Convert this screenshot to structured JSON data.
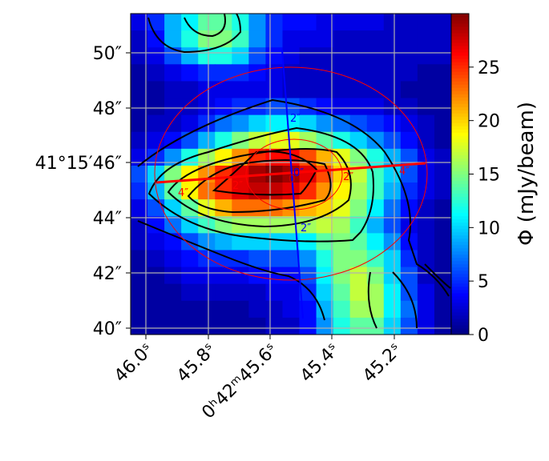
{
  "chart_data": {
    "type": "heatmap",
    "colormap": "jet",
    "colorbar": {
      "label": "Φ (mJy/beam)",
      "range": [
        0,
        30
      ],
      "ticks": [
        "0",
        "5",
        "10",
        "15",
        "20",
        "25"
      ],
      "tick_values": [
        0,
        5,
        10,
        15,
        20,
        25
      ]
    },
    "x_ticks": [
      "46.0ˢ",
      "45.8ˢ",
      "0ʰ42ᵐ45.6ˢ",
      "45.4ˢ",
      "45.2ˢ"
    ],
    "y_ticks": [
      "50″",
      "48″",
      "41°15′46″",
      "44″",
      "42″",
      "40″"
    ],
    "grid": true,
    "values": [
      [
        3,
        5,
        9,
        11,
        14,
        14,
        12,
        8,
        5,
        4,
        4,
        3,
        3,
        3,
        3,
        2,
        2,
        2,
        2
      ],
      [
        2,
        4,
        9,
        12,
        15,
        15,
        13,
        8,
        5,
        3,
        3,
        3,
        2,
        2,
        2,
        2,
        2,
        2,
        2
      ],
      [
        2,
        3,
        6,
        9,
        12,
        12,
        10,
        6,
        4,
        3,
        2,
        2,
        2,
        2,
        2,
        2,
        2,
        2,
        2
      ],
      [
        1,
        2,
        3,
        4,
        5,
        5,
        5,
        4,
        3,
        2,
        2,
        2,
        2,
        2,
        2,
        2,
        2,
        1,
        1
      ],
      [
        1,
        1,
        2,
        2,
        3,
        3,
        3,
        3,
        3,
        2,
        2,
        2,
        2,
        2,
        2,
        2,
        1,
        1,
        1
      ],
      [
        1,
        1,
        2,
        2,
        3,
        4,
        5,
        5,
        6,
        6,
        5,
        4,
        3,
        3,
        3,
        2,
        2,
        1,
        1
      ],
      [
        1,
        2,
        2,
        3,
        5,
        7,
        8,
        10,
        11,
        11,
        10,
        8,
        7,
        6,
        5,
        4,
        3,
        2,
        1
      ],
      [
        2,
        3,
        4,
        6,
        9,
        12,
        15,
        17,
        18,
        18,
        16,
        14,
        12,
        10,
        8,
        6,
        4,
        2,
        1
      ],
      [
        3,
        5,
        8,
        12,
        16,
        19,
        22,
        25,
        26,
        26,
        24,
        21,
        18,
        15,
        12,
        9,
        6,
        3,
        2
      ],
      [
        6,
        10,
        15,
        19,
        22,
        25,
        27,
        29,
        30,
        29,
        27,
        24,
        20,
        17,
        13,
        10,
        6,
        3,
        2
      ],
      [
        5,
        9,
        14,
        19,
        23,
        25,
        27,
        28,
        28,
        27,
        25,
        22,
        19,
        16,
        13,
        9,
        5,
        3,
        2
      ],
      [
        3,
        6,
        10,
        14,
        18,
        21,
        23,
        23,
        23,
        22,
        21,
        20,
        18,
        15,
        11,
        7,
        4,
        2,
        1
      ],
      [
        2,
        4,
        7,
        10,
        13,
        15,
        16,
        16,
        16,
        16,
        16,
        17,
        16,
        13,
        9,
        6,
        3,
        2,
        1
      ],
      [
        2,
        3,
        4,
        6,
        8,
        9,
        10,
        10,
        10,
        10,
        11,
        14,
        15,
        14,
        11,
        8,
        4,
        2,
        1
      ],
      [
        1,
        2,
        3,
        4,
        5,
        5,
        5,
        6,
        6,
        6,
        8,
        12,
        15,
        15,
        13,
        10,
        5,
        2,
        1
      ],
      [
        1,
        1,
        2,
        3,
        3,
        3,
        3,
        4,
        4,
        4,
        6,
        11,
        15,
        17,
        15,
        10,
        6,
        2,
        1
      ],
      [
        1,
        1,
        1,
        2,
        2,
        2,
        2,
        2,
        3,
        3,
        5,
        10,
        14,
        17,
        16,
        11,
        6,
        3,
        1
      ],
      [
        1,
        1,
        1,
        1,
        1,
        1,
        1,
        2,
        2,
        3,
        4,
        9,
        13,
        16,
        16,
        11,
        7,
        3,
        1
      ],
      [
        1,
        1,
        1,
        1,
        1,
        1,
        1,
        1,
        2,
        2,
        4,
        8,
        12,
        14,
        14,
        10,
        6,
        3,
        1
      ]
    ],
    "overlays": {
      "major_axis_color": "#ff0000",
      "minor_axis_color": "#0000ff",
      "major_axis_labels": [
        "4″",
        "2″",
        "0″",
        "2″",
        "4″"
      ],
      "minor_axis_labels": [
        "2″",
        "0″",
        "2″"
      ]
    }
  }
}
